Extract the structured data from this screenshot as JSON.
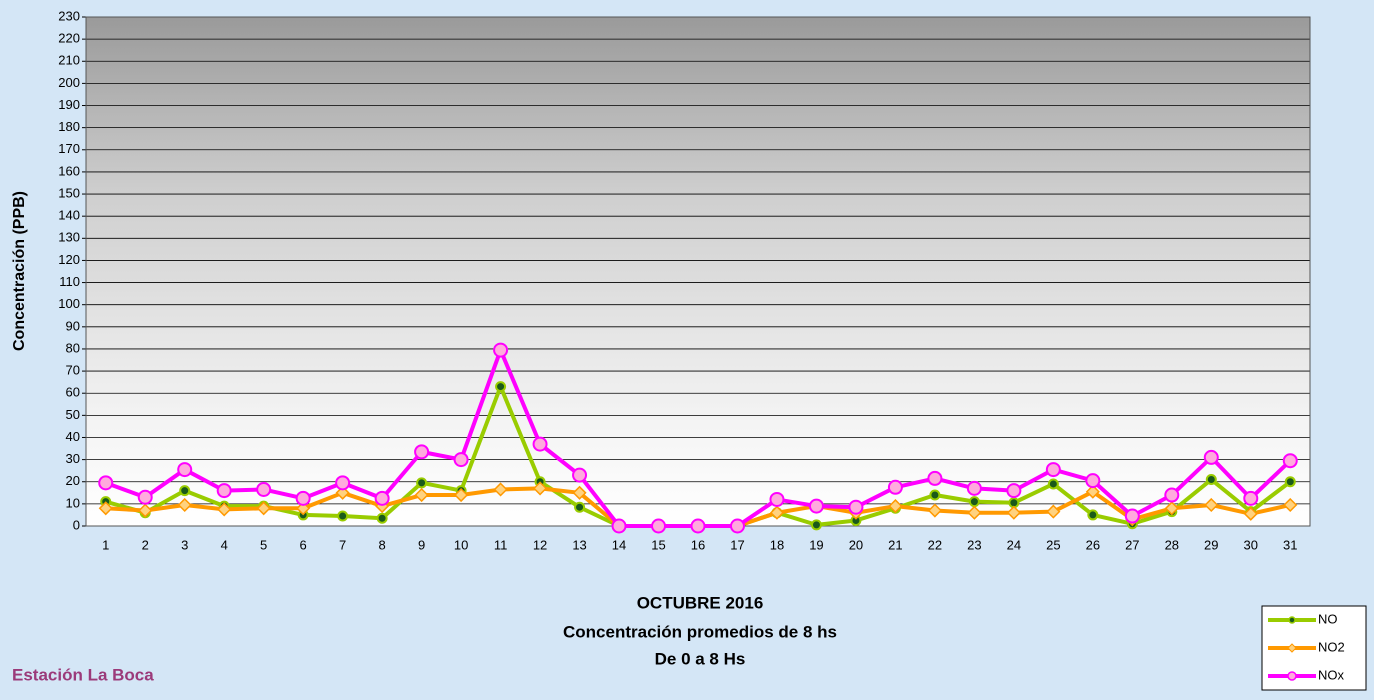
{
  "chart_data": {
    "type": "line",
    "title": "OCTUBRE 2016",
    "subtitle": [
      "Concentración promedios de 8 hs",
      "De 0 a 8 Hs"
    ],
    "annotation": "Estación La Boca",
    "y_label": "Concentración  (PPB)",
    "categories": [
      1,
      2,
      3,
      4,
      5,
      6,
      7,
      8,
      9,
      10,
      11,
      12,
      13,
      14,
      15,
      16,
      17,
      18,
      19,
      20,
      21,
      22,
      23,
      24,
      25,
      26,
      27,
      28,
      29,
      30,
      31
    ],
    "series": [
      {
        "name": "NO",
        "color": "#99cc00",
        "values": [
          11,
          6,
          16,
          9,
          9,
          5,
          4.5,
          3.5,
          19.5,
          16,
          63,
          20,
          8.5,
          0,
          0,
          0,
          0,
          6,
          0.5,
          2.5,
          8,
          14,
          11,
          10.5,
          19,
          5,
          1,
          6.5,
          21,
          6.5,
          20
        ]
      },
      {
        "name": "NO2",
        "color": "#ff9900",
        "values": [
          8,
          7,
          9.5,
          7.5,
          8,
          8,
          15,
          9,
          14,
          14,
          16.5,
          17,
          15,
          0,
          0,
          0,
          0,
          6,
          9,
          6,
          9,
          7,
          6,
          6,
          6.5,
          15.5,
          3,
          8,
          9.5,
          5.5,
          9.5
        ]
      },
      {
        "name": "NOx",
        "color": "#ff00ff",
        "values": [
          19.5,
          13,
          25.5,
          16,
          16.5,
          12.5,
          19.5,
          12.5,
          33.5,
          30,
          79.5,
          37,
          23,
          0,
          0,
          0,
          0,
          12,
          9,
          8.5,
          17.5,
          21.5,
          17,
          16,
          25.5,
          20.5,
          4.5,
          14,
          31,
          12.5,
          29.5
        ]
      }
    ],
    "ylim": [
      0,
      230
    ],
    "yticks": [
      0,
      10,
      20,
      30,
      40,
      50,
      60,
      70,
      80,
      90,
      100,
      110,
      120,
      130,
      140,
      150,
      160,
      170,
      180,
      190,
      200,
      210,
      220,
      230
    ],
    "grid": true,
    "legend": "bottom-right"
  }
}
